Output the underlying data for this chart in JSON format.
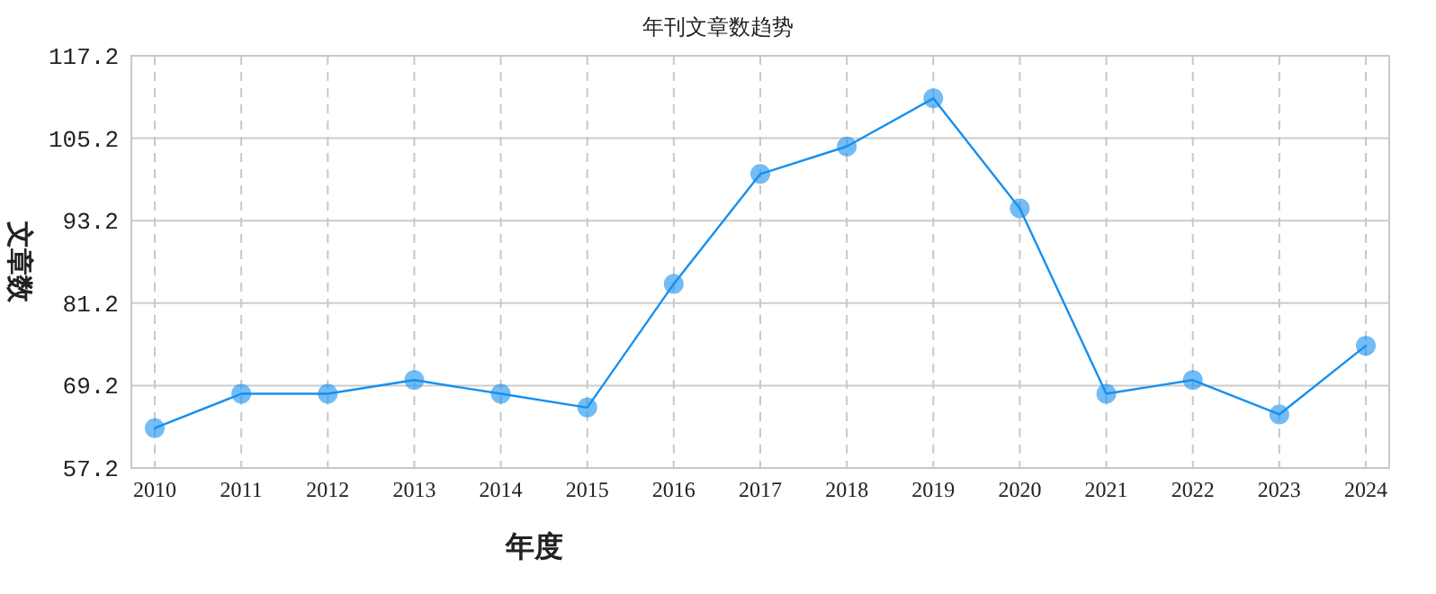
{
  "chart_data": {
    "type": "line",
    "title": "年刊文章数趋势",
    "xlabel": "年度",
    "ylabel": "文章数",
    "categories": [
      "2010",
      "2011",
      "2012",
      "2013",
      "2014",
      "2015",
      "2016",
      "2017",
      "2018",
      "2019",
      "2020",
      "2021",
      "2022",
      "2023",
      "2024"
    ],
    "series": [
      {
        "color": "#1590ef",
        "values": [
          63,
          68,
          68,
          70,
          68,
          66,
          84,
          100,
          104,
          111,
          95,
          68,
          70,
          65,
          75
        ]
      }
    ],
    "ylim": [
      57.2,
      117.2
    ],
    "yticks": [
      57.2,
      69.2,
      81.2,
      93.2,
      105.2,
      117.2
    ],
    "grid": true,
    "marker": "circle",
    "line_style": "solid"
  }
}
